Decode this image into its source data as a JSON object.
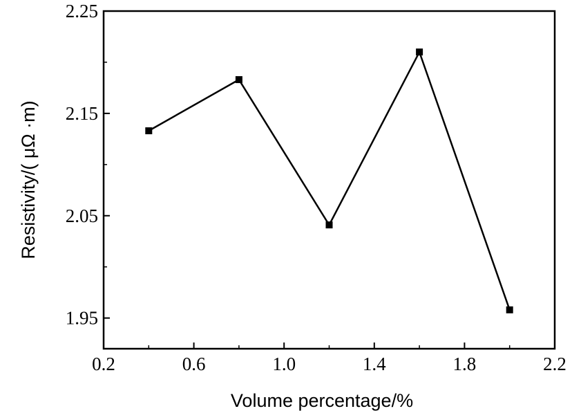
{
  "chart_data": {
    "type": "line",
    "title": "",
    "xlabel": "Volume percentage/%",
    "ylabel": "Resistivity/( μΩ ·m)",
    "xlim": [
      0.2,
      2.2
    ],
    "ylim": [
      1.92,
      2.25
    ],
    "x_ticks": [
      "0.2",
      "0.6",
      "1.0",
      "1.4",
      "1.8",
      "2.2"
    ],
    "y_ticks": [
      "1.95",
      "2.05",
      "2.15",
      "2.25"
    ],
    "grid": false,
    "legend": "none",
    "series": [
      {
        "x": [
          0.4,
          0.8,
          1.2,
          1.6,
          2.0
        ],
        "y": [
          2.133,
          2.183,
          2.041,
          2.21,
          1.958
        ],
        "color": "#000000",
        "marker": "square"
      }
    ]
  }
}
